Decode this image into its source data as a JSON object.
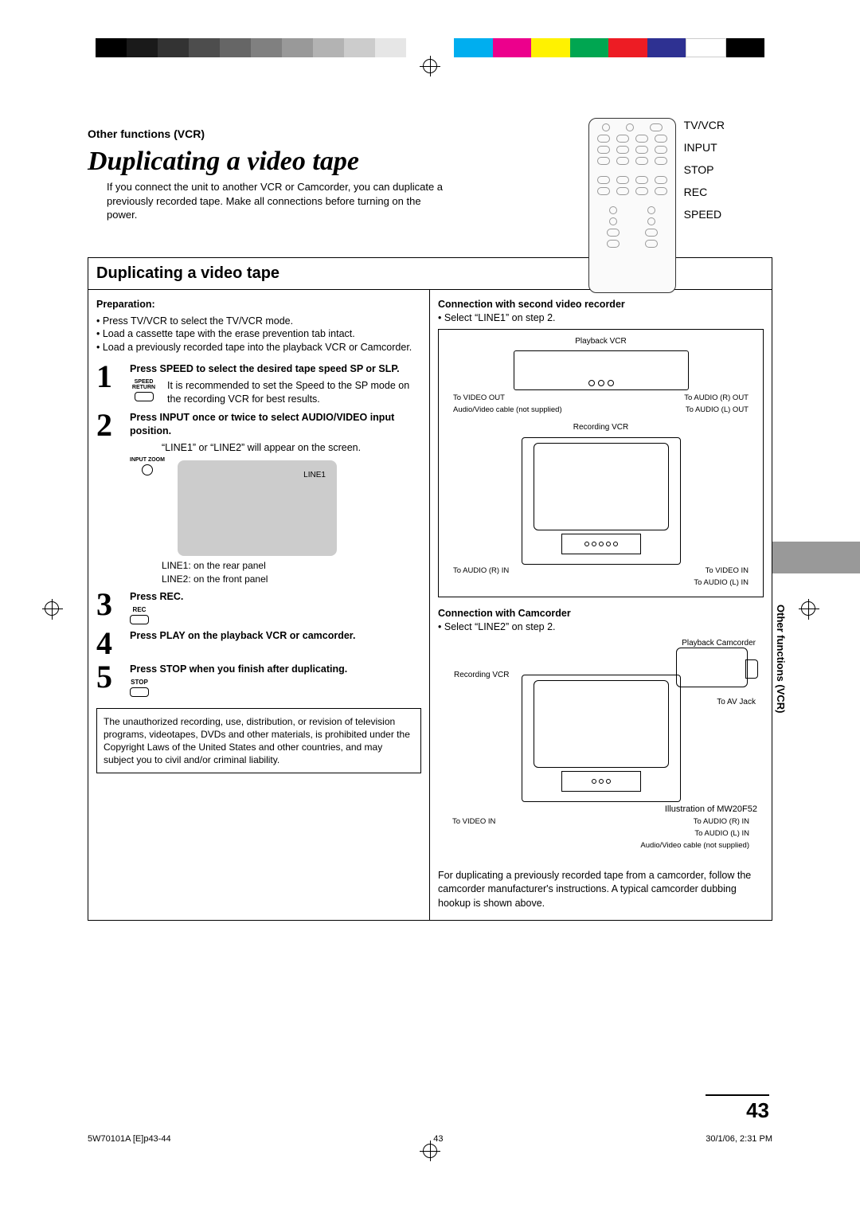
{
  "header": {
    "section": "Other functions (VCR)",
    "title": "Duplicating a video tape",
    "intro": "If you connect the unit to another VCR or Camcorder, you can duplicate a previously recorded tape. Make all connections before turning on the power."
  },
  "remote_labels": [
    "TV/VCR",
    "INPUT",
    "STOP",
    "REC",
    "SPEED"
  ],
  "box": {
    "title": "Duplicating a video tape",
    "left": {
      "prep_title": "Preparation:",
      "prep_bullets": [
        "Press TV/VCR to select the TV/VCR mode.",
        "Load a cassette tape with the erase prevention tab intact.",
        "Load a previously recorded tape into the playback VCR or Camcorder."
      ],
      "steps": {
        "s1_head": "Press SPEED to select the desired tape speed SP or SLP.",
        "s1_note": "It is recommended to set the Speed to the SP mode on the recording VCR for best results.",
        "s1_key": "SPEED RETURN",
        "s2_head": "Press INPUT once or twice to select AUDIO/VIDEO input position.",
        "s2_note": "“LINE1” or “LINE2” will appear on the screen.",
        "s2_key": "INPUT ZOOM",
        "screen_text": "LINE1",
        "panel_note1": "LINE1: on the rear panel",
        "panel_note2": "LINE2: on the front panel",
        "s3_head": "Press REC.",
        "s3_key": "REC",
        "s4_head": "Press PLAY on the playback VCR or camcorder.",
        "s5_head": "Press STOP when you finish after duplicating.",
        "s5_key": "STOP"
      },
      "disclaimer": "The unauthorized recording, use, distribution, or revision of television programs, videotapes, DVDs and other materials, is prohibited under the Copyright Laws of the United States and other countries, and may subject you to civil and/or criminal liability."
    },
    "right": {
      "conn1_title": "Connection with second video recorder",
      "conn1_note": "Select “LINE1” on step 2.",
      "d1": {
        "playback_label": "Playback VCR",
        "recording_label": "Recording VCR",
        "cable_note": "Audio/Video cable (not supplied)",
        "to_video_out": "To VIDEO OUT",
        "to_audio_r_out": "To AUDIO (R) OUT",
        "to_audio_l_out": "To AUDIO (L) OUT",
        "to_video_in": "To VIDEO IN",
        "to_audio_r_in": "To AUDIO (R) IN",
        "to_audio_l_in": "To AUDIO (L) IN"
      },
      "conn2_title": "Connection with Camcorder",
      "conn2_note": "Select “LINE2” on step 2.",
      "d2": {
        "playback_cam": "Playback Camcorder",
        "recording_label": "Recording VCR",
        "to_av_jack": "To AV Jack",
        "illus": "Illustration of MW20F52",
        "to_video_in": "To VIDEO IN",
        "to_audio_r_in": "To AUDIO (R) IN",
        "to_audio_l_in": "To AUDIO (L) IN",
        "cable_note": "Audio/Video cable (not supplied)"
      },
      "closing": "For duplicating a previously recorded tape from a camcorder, follow the camcorder manufacturer's instructions. A typical camcorder dubbing hookup is shown above."
    }
  },
  "side_tab": "Other functions (VCR)",
  "page_number": "43",
  "footer": {
    "left": "5W70101A [E]p43-44",
    "mid": "43",
    "right": "30/1/06, 2:31 PM"
  },
  "colors": {
    "grays": [
      "#000000",
      "#1a1a1a",
      "#333333",
      "#4d4d4d",
      "#666666",
      "#808080",
      "#999999",
      "#b3b3b3",
      "#cccccc",
      "#e6e6e6"
    ],
    "cmyk": [
      "#00aeef",
      "#ec008c",
      "#fff200",
      "#00a651",
      "#ed1c24",
      "#2e3192",
      "#ffffff",
      "#000000"
    ]
  }
}
